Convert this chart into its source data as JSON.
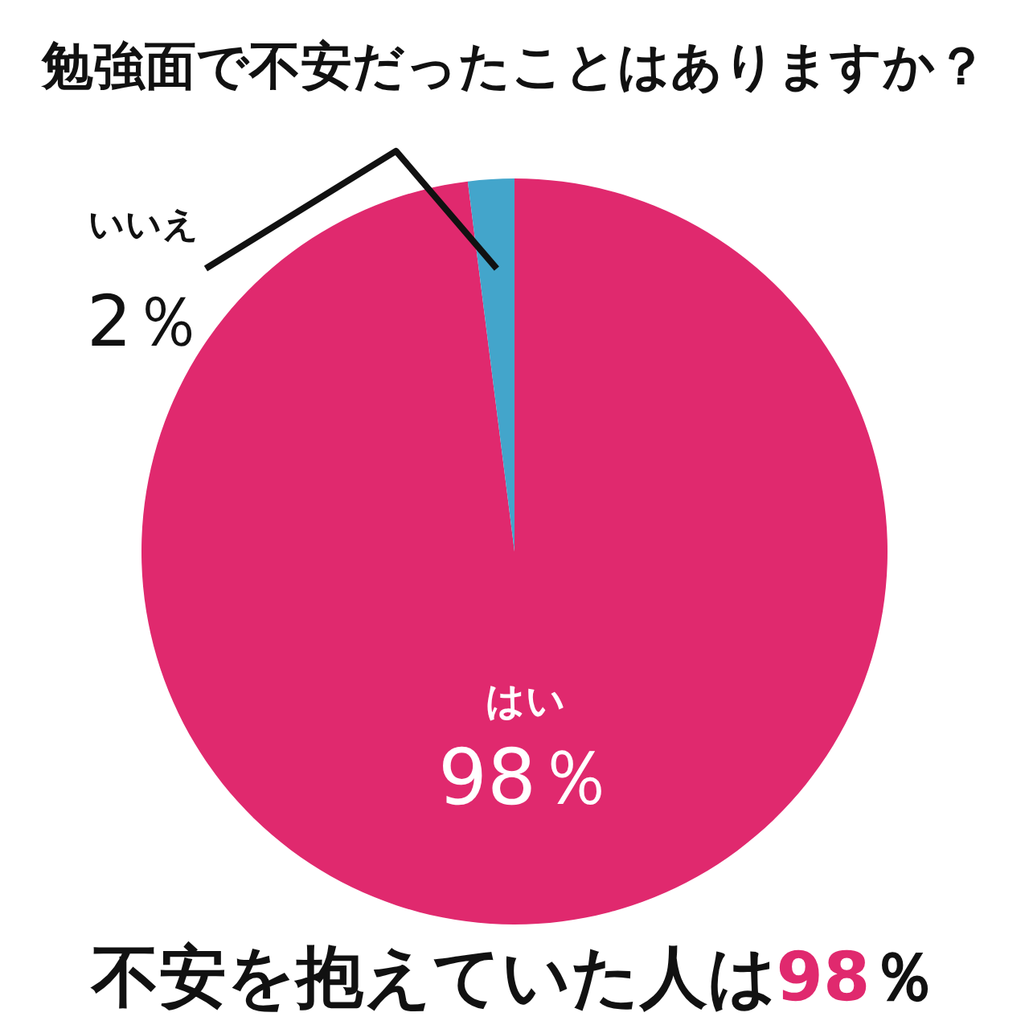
{
  "chart_data": {
    "type": "pie",
    "title": "勉強面で不安だったことはありますか？",
    "categories": [
      "はい",
      "いいえ"
    ],
    "values": [
      98,
      2
    ],
    "colors": [
      "#e0296e",
      "#43a5cb"
    ],
    "value_labels": [
      "98％",
      "2％"
    ],
    "annotations": [
      "不安を抱えていた人は98％"
    ]
  }
}
